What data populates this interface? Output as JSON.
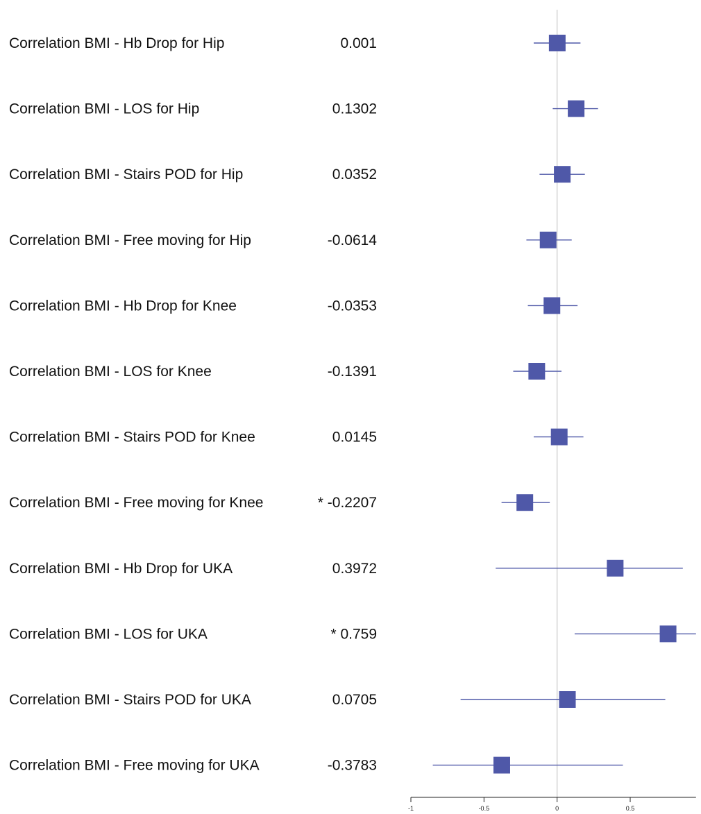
{
  "chart_data": {
    "type": "forest",
    "title": "",
    "xlabel": "",
    "ylabel": "",
    "xlim": [
      -1,
      0.95
    ],
    "x_ticks": [
      -1,
      -0.5,
      0,
      0.5
    ],
    "x_tick_labels": [
      "-1",
      "-0.5",
      "0",
      "0.5"
    ],
    "reference_line": 0,
    "grid": false,
    "colors": {
      "marker": "#4f58a8",
      "interval": "#4f58a8",
      "reference": "#c8c8c8",
      "axis": "#222222"
    },
    "rows": [
      {
        "label": "Correlation BMI - Hb Drop for Hip",
        "value_text": "0.001",
        "estimate": 0.001,
        "ci": [
          -0.16,
          0.16
        ]
      },
      {
        "label": "Correlation BMI - LOS for Hip",
        "value_text": "0.1302",
        "estimate": 0.1302,
        "ci": [
          -0.03,
          0.28
        ]
      },
      {
        "label": "Correlation BMI - Stairs POD for Hip",
        "value_text": "0.0352",
        "estimate": 0.0352,
        "ci": [
          -0.12,
          0.19
        ]
      },
      {
        "label": "Correlation BMI - Free moving for Hip",
        "value_text": "-0.0614",
        "estimate": -0.0614,
        "ci": [
          -0.21,
          0.1
        ]
      },
      {
        "label": "Correlation BMI - Hb Drop for Knee",
        "value_text": "-0.0353",
        "estimate": -0.0353,
        "ci": [
          -0.2,
          0.14
        ]
      },
      {
        "label": "Correlation BMI - LOS for Knee",
        "value_text": "-0.1391",
        "estimate": -0.1391,
        "ci": [
          -0.3,
          0.03
        ]
      },
      {
        "label": "Correlation BMI - Stairs POD for Knee",
        "value_text": "0.0145",
        "estimate": 0.0145,
        "ci": [
          -0.16,
          0.18
        ]
      },
      {
        "label": "Correlation BMI - Free moving for Knee",
        "value_text": "* -0.2207",
        "estimate": -0.2207,
        "ci": [
          -0.38,
          -0.05
        ]
      },
      {
        "label": "Correlation BMI - Hb Drop for UKA",
        "value_text": "0.3972",
        "estimate": 0.3972,
        "ci": [
          -0.42,
          0.86
        ]
      },
      {
        "label": "Correlation BMI - LOS for UKA",
        "value_text": "* 0.759",
        "estimate": 0.759,
        "ci": [
          0.12,
          0.95
        ]
      },
      {
        "label": "Correlation BMI - Stairs POD for UKA",
        "value_text": "0.0705",
        "estimate": 0.0705,
        "ci": [
          -0.66,
          0.74
        ]
      },
      {
        "label": "Correlation BMI - Free moving for UKA",
        "value_text": "-0.3783",
        "estimate": -0.3783,
        "ci": [
          -0.85,
          0.45
        ]
      }
    ]
  }
}
